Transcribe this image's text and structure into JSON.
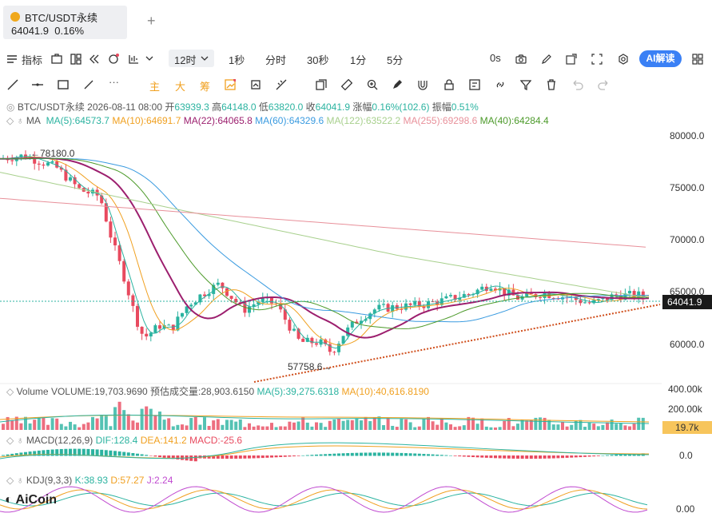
{
  "tab": {
    "symbol": "BTC/USDT永续",
    "price": "64041.9",
    "change": "0.16%"
  },
  "toolbar": {
    "indicators": "指标",
    "interval_selected": "12时",
    "intervals": [
      "1秒",
      "分时",
      "30秒",
      "1分",
      "5分"
    ],
    "zero_s": "0s",
    "ai_button": "AI解读"
  },
  "drawing_tools": {
    "zhu": "主",
    "da": "大",
    "chou": "筹"
  },
  "ohlc_legend": {
    "text": "BTC/USDT永续 2026-08-11 08:00",
    "open_label": "开",
    "open": "63939.3",
    "high_label": "高",
    "high": "64148.0",
    "low_label": "低",
    "low": "63820.0",
    "close_label": "收",
    "close": "64041.9",
    "chg_label": "涨幅",
    "chg": "0.16%(102.6)",
    "amp_label": "振幅",
    "amp": "0.51%"
  },
  "ma_legend": {
    "name": "MA",
    "items": [
      {
        "text": "MA(5):64573.7",
        "color": "#2bb3a0"
      },
      {
        "text": "MA(10):64691.7",
        "color": "#f0a020"
      },
      {
        "text": "MA(22):64065.8",
        "color": "#9c1f6e"
      },
      {
        "text": "MA(60):64329.6",
        "color": "#3a9be0"
      },
      {
        "text": "MA(122):63522.2",
        "color": "#a8d08d"
      },
      {
        "text": "MA(255):69298.6",
        "color": "#e8909a"
      },
      {
        "text": "MA(40):64284.4",
        "color": "#4c9a2a"
      }
    ]
  },
  "price_axis": [
    "80000.0",
    "75000.0",
    "70000.0",
    "65000.0",
    "60000.0"
  ],
  "price_tag": "64041.9",
  "annotations": {
    "high": "78180.0",
    "low": "57758.6"
  },
  "volume_legend": {
    "name": "Volume",
    "volume": "VOLUME:19,703.9690",
    "est": "预估成交量:28,903.6150",
    "ma5": "MA(5):39,275.6318",
    "ma10": "MA(10):40,616.8190"
  },
  "volume_axis": [
    "400.00k",
    "200.00k"
  ],
  "volume_tag": "19.7k",
  "macd_legend": {
    "name": "MACD(12,26,9)",
    "dif": "DIF:128.4",
    "dea": "DEA:141.2",
    "macd": "MACD:-25.6"
  },
  "macd_axis": "0.0",
  "kdj_legend": {
    "name": "KDJ(9,3,3)",
    "k": "K:38.93",
    "d": "D:57.27",
    "j": "J:2.24"
  },
  "kdj_axis": "0.00",
  "logo": "AiCoin",
  "colors": {
    "up": "#2bb3a0",
    "down": "#e84a5f",
    "accent": "#3a80f5"
  }
}
